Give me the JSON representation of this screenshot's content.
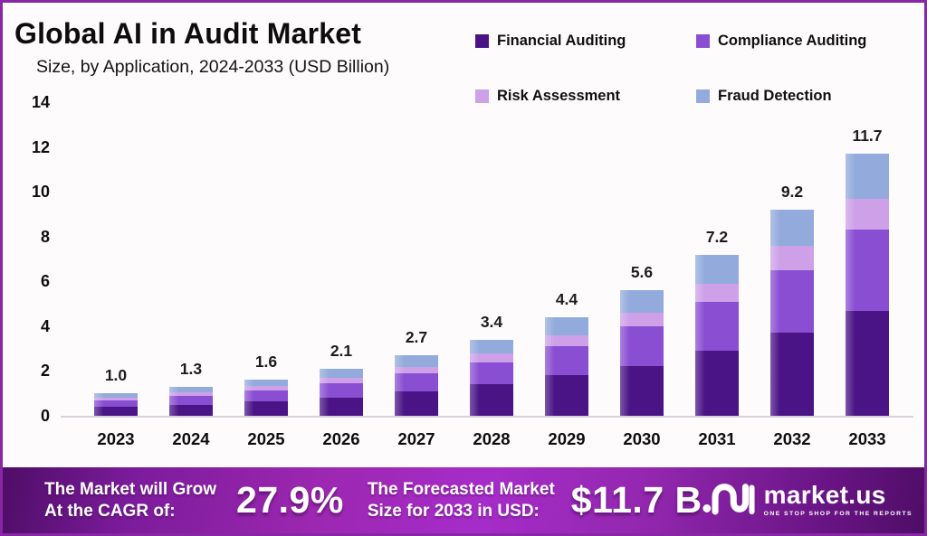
{
  "header": {
    "title": "Global AI in Audit Market",
    "subtitle": "Size, by Application, 2024-2033 (USD Billion)"
  },
  "legend": [
    {
      "label": "Financial Auditing",
      "color": "#4a1486"
    },
    {
      "label": "Compliance Auditing",
      "color": "#8a4ed2"
    },
    {
      "label": "Risk Assessment",
      "color": "#cda0e8"
    },
    {
      "label": "Fraud Detection",
      "color": "#92abdc"
    }
  ],
  "chart_data": {
    "type": "bar",
    "stacked": true,
    "title": "Global AI in Audit Market Size, by Application, 2024-2033 (USD Billion)",
    "categories": [
      "2023",
      "2024",
      "2025",
      "2026",
      "2027",
      "2028",
      "2029",
      "2030",
      "2031",
      "2032",
      "2033"
    ],
    "series": [
      {
        "name": "Financial Auditing",
        "color": "#4a1486",
        "values": [
          0.4,
          0.5,
          0.65,
          0.8,
          1.1,
          1.4,
          1.8,
          2.2,
          2.9,
          3.7,
          4.7
        ]
      },
      {
        "name": "Compliance Auditing",
        "color": "#8a4ed2",
        "values": [
          0.3,
          0.4,
          0.5,
          0.65,
          0.8,
          1.0,
          1.3,
          1.8,
          2.2,
          2.8,
          3.6
        ]
      },
      {
        "name": "Risk Assessment",
        "color": "#cda0e8",
        "values": [
          0.1,
          0.15,
          0.2,
          0.25,
          0.3,
          0.4,
          0.5,
          0.6,
          0.8,
          1.1,
          1.4
        ]
      },
      {
        "name": "Fraud Detection",
        "color": "#92abdc",
        "values": [
          0.2,
          0.25,
          0.25,
          0.4,
          0.5,
          0.6,
          0.8,
          1.0,
          1.3,
          1.6,
          2.0
        ]
      }
    ],
    "totals": [
      1.0,
      1.3,
      1.6,
      2.1,
      2.7,
      3.4,
      4.4,
      5.6,
      7.2,
      9.2,
      11.7
    ],
    "total_labels": [
      "1.0",
      "1.3",
      "1.6",
      "2.1",
      "2.7",
      "3.4",
      "4.4",
      "5.6",
      "7.2",
      "9.2",
      "11.7"
    ],
    "xlabel": "",
    "ylabel": "",
    "ylim": [
      0,
      14
    ],
    "yticks": [
      0,
      2,
      4,
      6,
      8,
      10,
      12,
      14
    ],
    "grid": false,
    "legend_position": "top-right"
  },
  "footer": {
    "cagr_label_line1": "The Market will Grow",
    "cagr_label_line2": "At the CAGR of:",
    "cagr_value": "27.9%",
    "forecast_label_line1": "The Forecasted Market",
    "forecast_label_line2": "Size for 2033 in USD:",
    "forecast_value": "$11.7 B",
    "brand_name": "market.us",
    "brand_tagline": "ONE STOP SHOP FOR THE REPORTS"
  },
  "colors": {
    "frame_border": "#8727a6",
    "background": "#fdfbfc",
    "axis_line": "#d8d2da",
    "banner_center": "#a62cc9",
    "banner_edge": "#4e0d66",
    "text": "#141414"
  }
}
